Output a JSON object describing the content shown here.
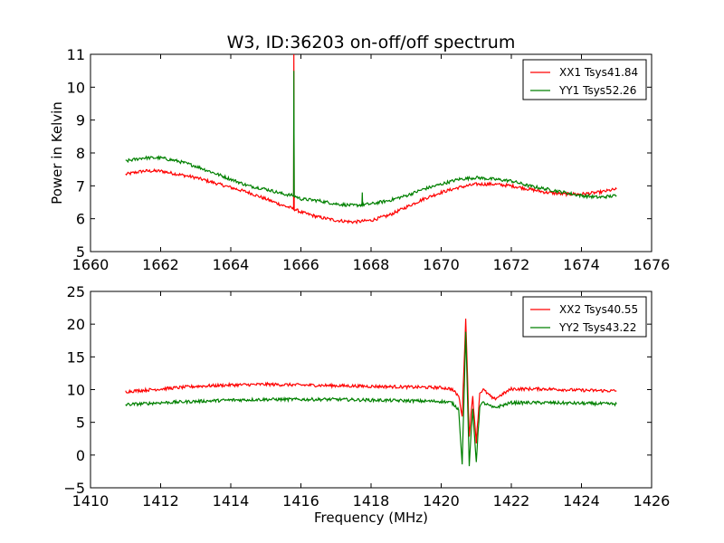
{
  "figure": {
    "title": "W3, ID:36203 on-off/off spectrum"
  },
  "chart_data": [
    {
      "type": "line",
      "title": "W3, ID:36203 on-off/off spectrum",
      "xlabel": "",
      "ylabel": "Power in Kelvin",
      "xlim": [
        1660,
        1676
      ],
      "ylim": [
        5,
        11
      ],
      "xticks": [
        "1660",
        "1662",
        "1664",
        "1666",
        "1668",
        "1670",
        "1672",
        "1674",
        "1676"
      ],
      "yticks": [
        "5",
        "6",
        "7",
        "8",
        "9",
        "10",
        "11"
      ],
      "grid": false,
      "legend": "top-right",
      "x": [
        1661.0,
        1661.5,
        1662.0,
        1662.5,
        1663.0,
        1663.5,
        1664.0,
        1664.5,
        1665.0,
        1665.5,
        1665.8,
        1666.0,
        1666.5,
        1667.0,
        1667.5,
        1668.0,
        1668.5,
        1669.0,
        1669.5,
        1670.0,
        1670.5,
        1671.0,
        1671.5,
        1672.0,
        1672.5,
        1673.0,
        1673.5,
        1674.0,
        1674.5,
        1675.0
      ],
      "series": [
        {
          "name": "XX1 Tsys41.84",
          "color": "#ff0000",
          "values": [
            7.35,
            7.45,
            7.45,
            7.35,
            7.25,
            7.1,
            6.95,
            6.8,
            6.6,
            6.4,
            6.3,
            6.2,
            6.05,
            5.95,
            5.9,
            5.95,
            6.1,
            6.35,
            6.6,
            6.8,
            6.95,
            7.05,
            7.05,
            7.0,
            6.9,
            6.8,
            6.75,
            6.75,
            6.8,
            6.9
          ],
          "spikes": [
            {
              "x": 1665.8,
              "y": 11.0
            }
          ]
        },
        {
          "name": "YY1 Tsys52.26",
          "color": "#008000",
          "values": [
            7.75,
            7.85,
            7.85,
            7.75,
            7.6,
            7.4,
            7.2,
            7.0,
            6.9,
            6.75,
            6.7,
            6.6,
            6.55,
            6.45,
            6.4,
            6.45,
            6.55,
            6.7,
            6.9,
            7.05,
            7.2,
            7.25,
            7.2,
            7.15,
            7.0,
            6.9,
            6.8,
            6.7,
            6.65,
            6.7
          ],
          "spikes": [
            {
              "x": 1665.8,
              "y": 10.5
            },
            {
              "x": 1667.75,
              "y": 6.8
            }
          ]
        }
      ]
    },
    {
      "type": "line",
      "title": "",
      "xlabel": "Frequency (MHz)",
      "ylabel": "",
      "xlim": [
        1410,
        1426
      ],
      "ylim": [
        -5,
        25
      ],
      "xticks": [
        "1410",
        "1412",
        "1414",
        "1416",
        "1418",
        "1420",
        "1422",
        "1424",
        "1426"
      ],
      "yticks": [
        "−5",
        "0",
        "5",
        "10",
        "15",
        "20",
        "25"
      ],
      "grid": false,
      "legend": "top-right",
      "x": [
        1411.0,
        1412.0,
        1413.0,
        1414.0,
        1415.0,
        1416.0,
        1417.0,
        1418.0,
        1419.0,
        1420.0,
        1420.3,
        1420.5,
        1420.6,
        1420.7,
        1420.8,
        1420.9,
        1421.0,
        1421.1,
        1421.2,
        1421.5,
        1422.0,
        1423.0,
        1424.0,
        1425.0
      ],
      "series": [
        {
          "name": "XX2 Tsys40.55",
          "color": "#ff0000",
          "values": [
            9.7,
            10.1,
            10.5,
            10.7,
            10.8,
            10.7,
            10.6,
            10.5,
            10.4,
            10.3,
            10.1,
            9.0,
            6.0,
            21.0,
            3.0,
            9.0,
            2.0,
            9.5,
            10.0,
            8.5,
            10.1,
            10.1,
            9.9,
            9.8
          ]
        },
        {
          "name": "YY2 Tsys43.22",
          "color": "#008000",
          "values": [
            7.7,
            8.0,
            8.2,
            8.4,
            8.5,
            8.5,
            8.5,
            8.4,
            8.3,
            8.2,
            8.0,
            7.0,
            -1.5,
            19.0,
            -1.5,
            7.0,
            -1.0,
            7.5,
            8.0,
            7.2,
            8.0,
            8.0,
            7.9,
            7.8
          ]
        }
      ]
    }
  ]
}
